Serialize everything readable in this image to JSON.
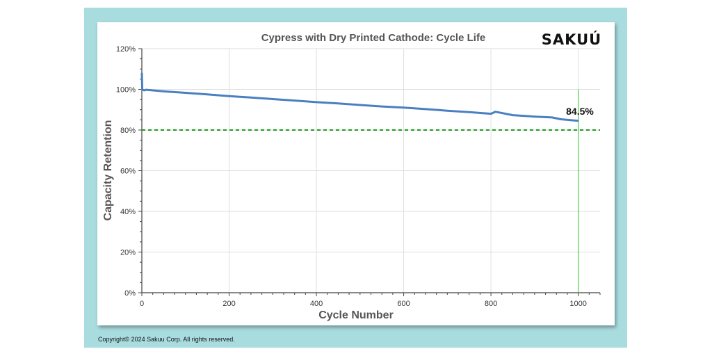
{
  "chart_data": {
    "type": "line",
    "title": "Cypress with Dry Printed Cathode: Cycle Life",
    "xlabel": "Cycle Number",
    "ylabel": "Capacity Retention",
    "xlim": [
      0,
      1050
    ],
    "ylim": [
      0,
      120
    ],
    "x_ticks": [
      0,
      200,
      400,
      600,
      800,
      1000
    ],
    "x_tick_labels": [
      "0",
      "200",
      "400",
      "600",
      "800",
      "1000"
    ],
    "y_ticks": [
      0,
      20,
      40,
      60,
      80,
      100,
      120
    ],
    "y_tick_labels": [
      "0%",
      "20%",
      "40%",
      "60%",
      "80%",
      "100%",
      "120%"
    ],
    "grid": true,
    "series": [
      {
        "x": [
          0,
          1,
          5,
          10,
          50,
          100,
          150,
          200,
          250,
          300,
          350,
          400,
          450,
          500,
          550,
          600,
          650,
          700,
          750,
          800,
          810,
          850,
          900,
          940,
          960,
          1000
        ],
        "values": [
          108,
          100,
          99.5,
          99.8,
          99.0,
          98.3,
          97.5,
          96.7,
          96.0,
          95.2,
          94.5,
          93.7,
          93.1,
          92.3,
          91.6,
          91.0,
          90.3,
          89.5,
          88.8,
          88.0,
          89.0,
          87.3,
          86.6,
          86.2,
          85.3,
          84.5
        ],
        "color": "#4a7fc1"
      }
    ],
    "reference_lines": [
      {
        "axis": "y",
        "value": 80,
        "color": "#1f9e1f",
        "style": "dashed"
      },
      {
        "axis": "x",
        "value": 1000,
        "color": "#2ecc2e",
        "style": "solid"
      }
    ],
    "annotations": [
      {
        "text": "84.5%",
        "x": 1000,
        "y": 84.5
      }
    ]
  },
  "logo": {
    "text": "SAKUÚ"
  },
  "footer": {
    "copyright": "Copyright© 2024 Sakuu Corp. All rights reserved."
  },
  "colors": {
    "frame": "#a9dcdf",
    "line": "#4a7fc1",
    "threshold": "#1f9e1f",
    "marker_line": "#2ecc2e"
  }
}
